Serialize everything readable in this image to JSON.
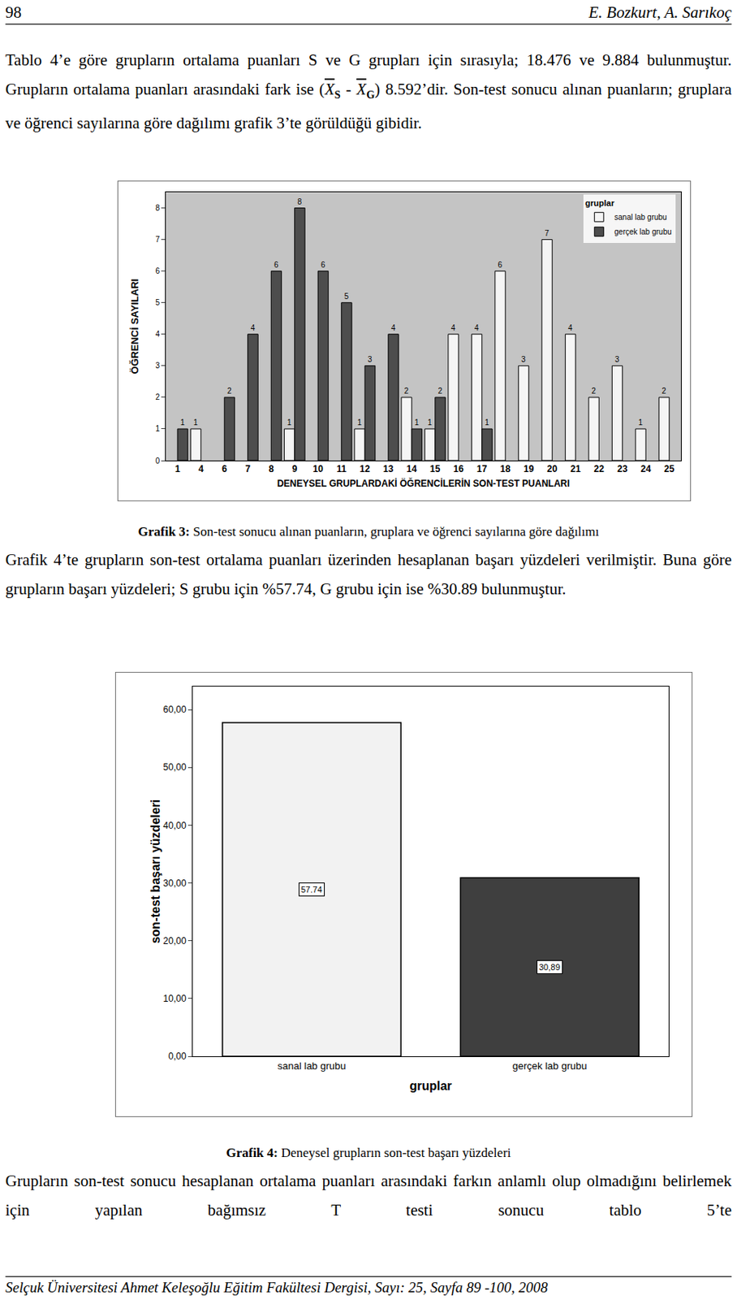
{
  "header": {
    "page": "98",
    "authors": "E. Bozkurt, A. Sarıkoç"
  },
  "paragraph_1": {
    "before": "Tablo 4’e göre grupların ortalama puanları S ve G grupları için sırasıyla; 18.476 ve 9.884 bulunmuştur. Grupların ortalama puanları arasındaki fark ise (",
    "symbol": "X",
    "sub_1": "S",
    "minus": " - ",
    "sub_2": "G",
    "after": ")  8.592’dir. Son-test sonucu alınan puanların; gruplara ve öğrenci sayılarına göre dağılımı grafik 3’te görüldüğü gibidir."
  },
  "paragraph_2": "Grafik 4’te grupların son-test ortalama puanları üzerinden hesaplanan başarı yüzdeleri verilmiştir. Buna göre grupların başarı yüzdeleri; S grubu için %57.74, G grubu için ise %30.89 bulunmuştur.",
  "paragraph_3": "Grupların son-test sonucu hesaplanan ortalama puanları arasındaki farkın anlamlı olup olmadığını belirlemek için yapılan bağımsız T testi sonucu tablo 5’te",
  "captions": [
    {
      "label": "Grafik 3:",
      "text": " Son-test sonucu alınan puanların, gruplara ve öğrenci sayılarına göre dağılımı"
    },
    {
      "label": "Grafik 4:",
      "text": " Deneysel grupların son-test başarı yüzdeleri"
    }
  ],
  "footer": "Selçuk Üniversitesi Ahmet Keleşoğlu Eğitim Fakültesi Dergisi, Sayı: 25, Sayfa 89 -100, 2008",
  "chart_data": [
    {
      "type": "bar",
      "categories": [
        "1",
        "4",
        "6",
        "7",
        "8",
        "9",
        "10",
        "11",
        "12",
        "13",
        "14",
        "15",
        "16",
        "17",
        "18",
        "19",
        "20",
        "21",
        "22",
        "23",
        "24",
        "25"
      ],
      "series": [
        {
          "name": "sanal lab grubu",
          "color": "#f5f5f5",
          "values": [
            null,
            1,
            null,
            null,
            null,
            1,
            null,
            null,
            1,
            null,
            2,
            1,
            4,
            4,
            6,
            3,
            7,
            4,
            2,
            3,
            1,
            2
          ]
        },
        {
          "name": "gerçek lab grubu",
          "color": "#4d4d4d",
          "values": [
            1,
            null,
            2,
            4,
            6,
            8,
            6,
            5,
            3,
            4,
            1,
            2,
            null,
            1,
            null,
            null,
            null,
            null,
            null,
            null,
            null,
            null
          ]
        }
      ],
      "x_label": "DENEYSEL GRUPLARDAKİ ÖĞRENCİLERİN SON-TEST PUANLARI",
      "y_label": "ÖĞRENCİ SAYILARI",
      "legend_title": "gruplar",
      "legend": "top right",
      "ylim": [
        0,
        8.5
      ],
      "yticks": [
        0,
        1,
        2,
        3,
        4,
        5,
        6,
        7,
        8
      ],
      "grid": false,
      "data_labels": true
    },
    {
      "type": "bar",
      "categories": [
        "sanal lab grubu",
        "gerçek lab grubu"
      ],
      "values": [
        57.74,
        30.89
      ],
      "value_labels": [
        "57.74",
        "30,89"
      ],
      "colors": [
        "#f2f2f2",
        "#3f3f3f"
      ],
      "x_label": "gruplar",
      "y_label": "son-test başarı yüzdeleri",
      "ylim": [
        0,
        64
      ],
      "yticks": [
        {
          "value": 0,
          "label": "0,00"
        },
        {
          "value": 10,
          "label": "10,00"
        },
        {
          "value": 20,
          "label": "20,00"
        },
        {
          "value": 30,
          "label": "30,00"
        },
        {
          "value": 40,
          "label": "40,00"
        },
        {
          "value": 50,
          "label": "50,00"
        },
        {
          "value": 60,
          "label": "60,00"
        }
      ],
      "grid": false,
      "data_labels": true
    }
  ]
}
